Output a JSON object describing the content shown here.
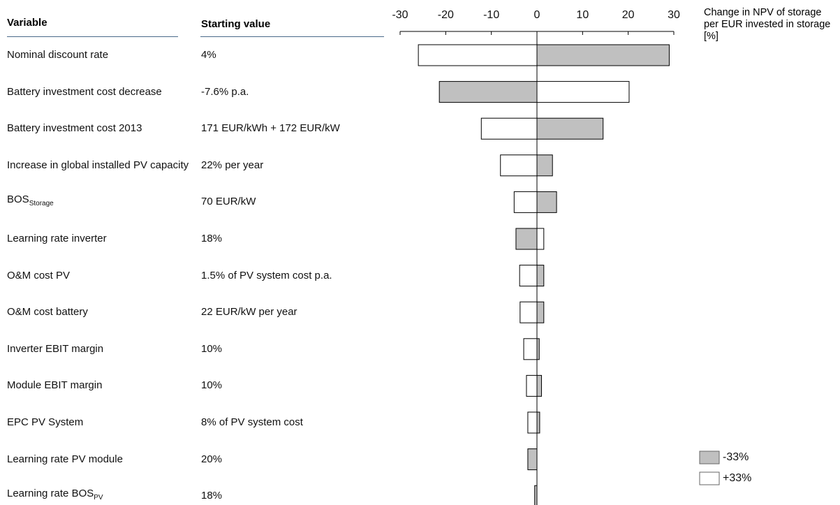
{
  "chart_data": {
    "type": "tornado",
    "column_headers": [
      "Variable",
      "Starting value"
    ],
    "categories": [
      "Nominal discount rate",
      "Battery investment cost decrease",
      "Battery investment cost 2013",
      "Increase in global installed PV capacity",
      "BOS",
      "Learning rate inverter",
      "O&M cost PV",
      "O&M cost battery",
      "Inverter EBIT margin",
      "Module EBIT margin",
      "EPC PV System",
      "Learning rate PV module",
      "Learning rate BOS"
    ],
    "category_subscripts": [
      null,
      null,
      null,
      null,
      "Storage",
      null,
      null,
      null,
      null,
      null,
      null,
      null,
      "PV"
    ],
    "starting_values": [
      "4%",
      "-7.6% p.a.",
      "171 EUR/kWh + 172 EUR/kW",
      "22% per year",
      "70 EUR/kW",
      "18%",
      "1.5% of PV system cost p.a.",
      "22 EUR/kW per year",
      "10%",
      "10%",
      "8% of PV system cost",
      "20%",
      "18%"
    ],
    "x_label": "Change in NPV of storage per EUR invested in storage [%]",
    "xlim": [
      -30,
      30
    ],
    "xticks": [
      -30,
      -20,
      -10,
      0,
      10,
      20,
      30
    ],
    "series": [
      {
        "name": "-33%",
        "color": "#c0c0c0",
        "values": [
          29,
          -21.4,
          14.5,
          3.4,
          4.3,
          -4.6,
          1.5,
          1.5,
          0.5,
          1,
          0.6,
          -2,
          -0.5
        ]
      },
      {
        "name": "+33%",
        "color": "#ffffff",
        "values": [
          -26,
          20.2,
          -12.2,
          -8,
          -5,
          1.5,
          -3.8,
          -3.7,
          -2.9,
          -2.3,
          -2,
          0,
          0
        ]
      }
    ]
  }
}
